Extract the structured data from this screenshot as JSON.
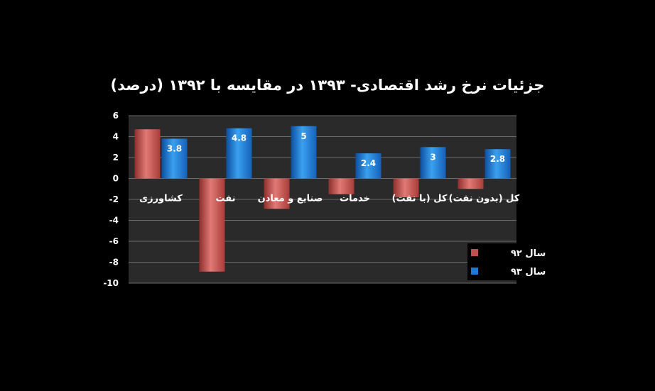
{
  "chart_data": {
    "type": "bar",
    "title": "جزئیات نرخ رشد اقتصادی- ۱۳۹۳ در مقایسه با ۱۳۹۲ (درصد)",
    "categories": [
      "کشاورزی",
      "نفت",
      "صنایع و معادن",
      "خدمات",
      "کل (با نفت)",
      "کل (بدون نفت)"
    ],
    "series": [
      {
        "name": "سال ۹۲",
        "color": "#c0504d",
        "values": [
          4.7,
          -8.9,
          -2.9,
          -1.5,
          -1.8,
          -1.0
        ]
      },
      {
        "name": "سال ۹۳",
        "color": "#1f77d4",
        "values": [
          3.8,
          4.8,
          5,
          2.4,
          3,
          2.8
        ]
      }
    ],
    "data_labels": {
      "series_index": 1,
      "labels": [
        "3.8",
        "4.8",
        "5",
        "2.4",
        "3",
        "2.8"
      ]
    },
    "yticks": [
      "6",
      "4",
      "2",
      "0",
      "-2",
      "-4",
      "-6",
      "-8",
      "-10"
    ],
    "ylim": [
      -10,
      6
    ],
    "grid": true,
    "plot_background": "#2a2a2a",
    "legend_position": "bottom-right"
  }
}
